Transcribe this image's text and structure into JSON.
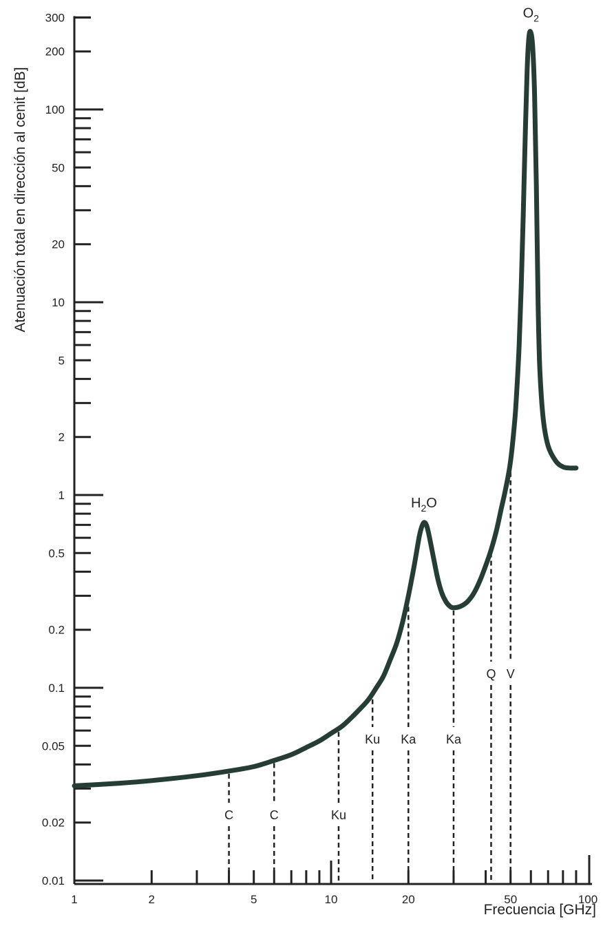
{
  "chart_data": {
    "type": "line",
    "title": "",
    "xlabel": "Frecuencia [GHz]",
    "ylabel": "Atenuación total en dirección al cenit [dB]",
    "x_scale": "log",
    "y_scale": "log",
    "xlim": [
      1,
      100
    ],
    "ylim": [
      0.01,
      300
    ],
    "grid": false,
    "x_tick_labels": [
      {
        "value": 1,
        "label": "1"
      },
      {
        "value": 2,
        "label": "2"
      },
      {
        "value": 5,
        "label": "5"
      },
      {
        "value": 10,
        "label": "10"
      },
      {
        "value": 20,
        "label": "20"
      },
      {
        "value": 50,
        "label": "50"
      },
      {
        "value": 100,
        "label": "100"
      }
    ],
    "y_tick_labels": [
      {
        "value": 0.01,
        "label": "0.01"
      },
      {
        "value": 0.02,
        "label": "0.02"
      },
      {
        "value": 0.05,
        "label": "0.05"
      },
      {
        "value": 0.1,
        "label": "0.1"
      },
      {
        "value": 0.2,
        "label": "0.2"
      },
      {
        "value": 0.5,
        "label": "0.5"
      },
      {
        "value": 1,
        "label": "1"
      },
      {
        "value": 2,
        "label": "2"
      },
      {
        "value": 5,
        "label": "5"
      },
      {
        "value": 10,
        "label": "10"
      },
      {
        "value": 20,
        "label": "20"
      },
      {
        "value": 50,
        "label": "50"
      },
      {
        "value": 100,
        "label": "100"
      },
      {
        "value": 200,
        "label": "200"
      },
      {
        "value": 300,
        "label": "300"
      }
    ],
    "series": [
      {
        "x": [
          1,
          1.5,
          2,
          3,
          4,
          5,
          6,
          7,
          8,
          9,
          10,
          11,
          12,
          13,
          14,
          15,
          16,
          17,
          18,
          19,
          20,
          21,
          22,
          22.5,
          23,
          23.5,
          24,
          25,
          26,
          27,
          28,
          29,
          30,
          32,
          34,
          36,
          38,
          40,
          42,
          44,
          46,
          48,
          50,
          52,
          53,
          54,
          55,
          56,
          57,
          58,
          59,
          60,
          61,
          62,
          63,
          64,
          65,
          67,
          70,
          75,
          80,
          85,
          90
        ],
        "y": [
          0.031,
          0.032,
          0.033,
          0.035,
          0.037,
          0.039,
          0.042,
          0.045,
          0.049,
          0.053,
          0.058,
          0.063,
          0.07,
          0.078,
          0.087,
          0.1,
          0.115,
          0.14,
          0.17,
          0.22,
          0.3,
          0.42,
          0.6,
          0.68,
          0.72,
          0.7,
          0.63,
          0.48,
          0.37,
          0.31,
          0.28,
          0.265,
          0.26,
          0.265,
          0.28,
          0.31,
          0.36,
          0.43,
          0.52,
          0.65,
          0.85,
          1.1,
          1.5,
          2.5,
          3.7,
          6,
          12,
          28,
          70,
          160,
          240,
          250,
          210,
          120,
          40,
          10,
          4.5,
          2.5,
          1.8,
          1.5,
          1.4,
          1.38,
          1.38
        ]
      }
    ],
    "band_markers": [
      {
        "label": "C",
        "x": 4,
        "y": 0.037
      },
      {
        "label": "C",
        "x": 6,
        "y": 0.042
      },
      {
        "label": "Ku",
        "x": 10.7,
        "y": 0.061
      },
      {
        "label": "Ku",
        "x": 14.5,
        "y": 0.09
      },
      {
        "label": "Ka",
        "x": 20,
        "y": 0.3
      },
      {
        "label": "Ka",
        "x": 30,
        "y": 0.26
      },
      {
        "label": "Q",
        "x": 42,
        "y": 0.52
      },
      {
        "label": "V",
        "x": 50,
        "y": 1.5
      }
    ],
    "annotations": [
      {
        "base": "H",
        "sub": "2",
        "rest": "O",
        "x": 23,
        "y": 0.72
      },
      {
        "base": "O",
        "sub": "2",
        "rest": "",
        "x": 60,
        "y": 250
      }
    ]
  }
}
